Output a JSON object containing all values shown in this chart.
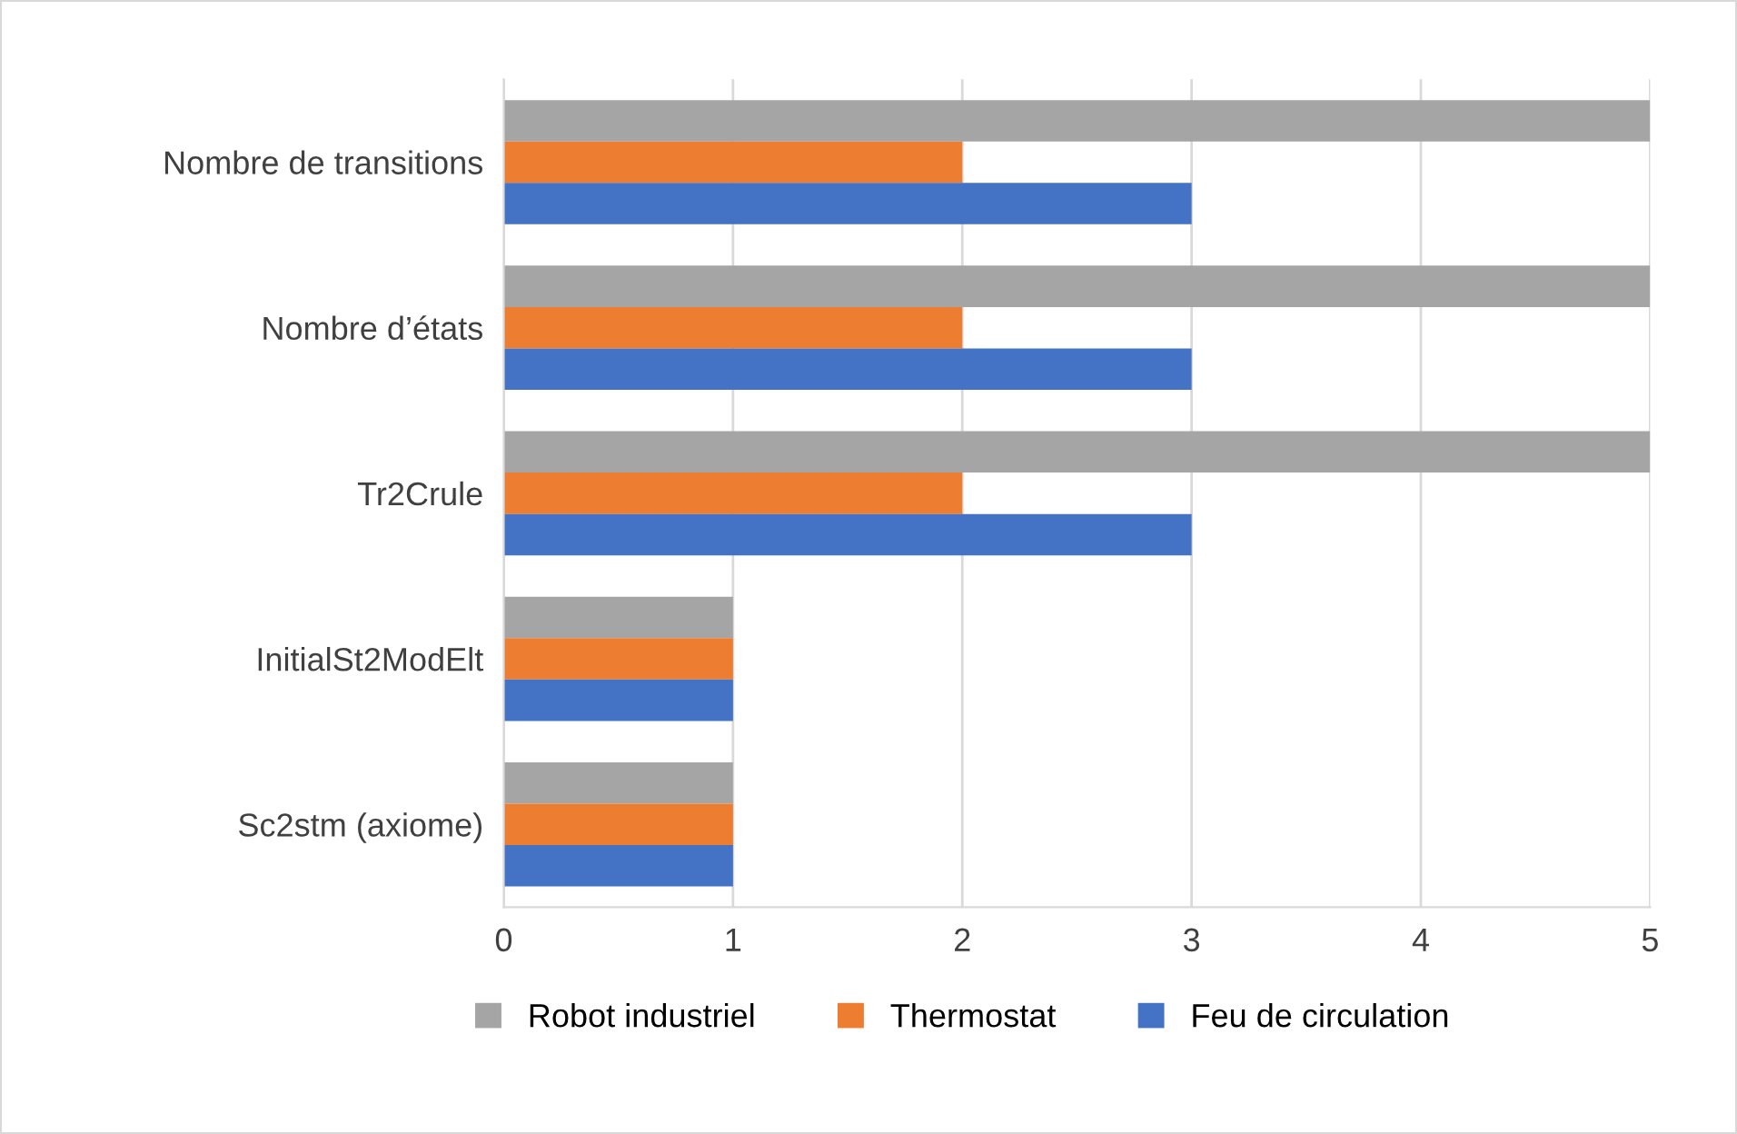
{
  "chart_data": {
    "type": "bar",
    "orientation": "horizontal",
    "categories": [
      "Nombre de transitions",
      "Nombre d’états",
      "Tr2Crule",
      "InitialSt2ModElt",
      "Sc2stm (axiome)"
    ],
    "series": [
      {
        "name": "Robot industriel",
        "color": "#a5a5a5",
        "values": [
          5,
          5,
          5,
          1,
          1
        ]
      },
      {
        "name": "Thermostat",
        "color": "#ed7d31",
        "values": [
          2,
          2,
          2,
          1,
          1
        ]
      },
      {
        "name": "Feu de circulation",
        "color": "#4472c4",
        "values": [
          3,
          3,
          3,
          1,
          1
        ]
      }
    ],
    "xlim": [
      0,
      5
    ],
    "xticks": [
      0,
      1,
      2,
      3,
      4,
      5
    ],
    "grid": "x",
    "legend": "bottom"
  }
}
